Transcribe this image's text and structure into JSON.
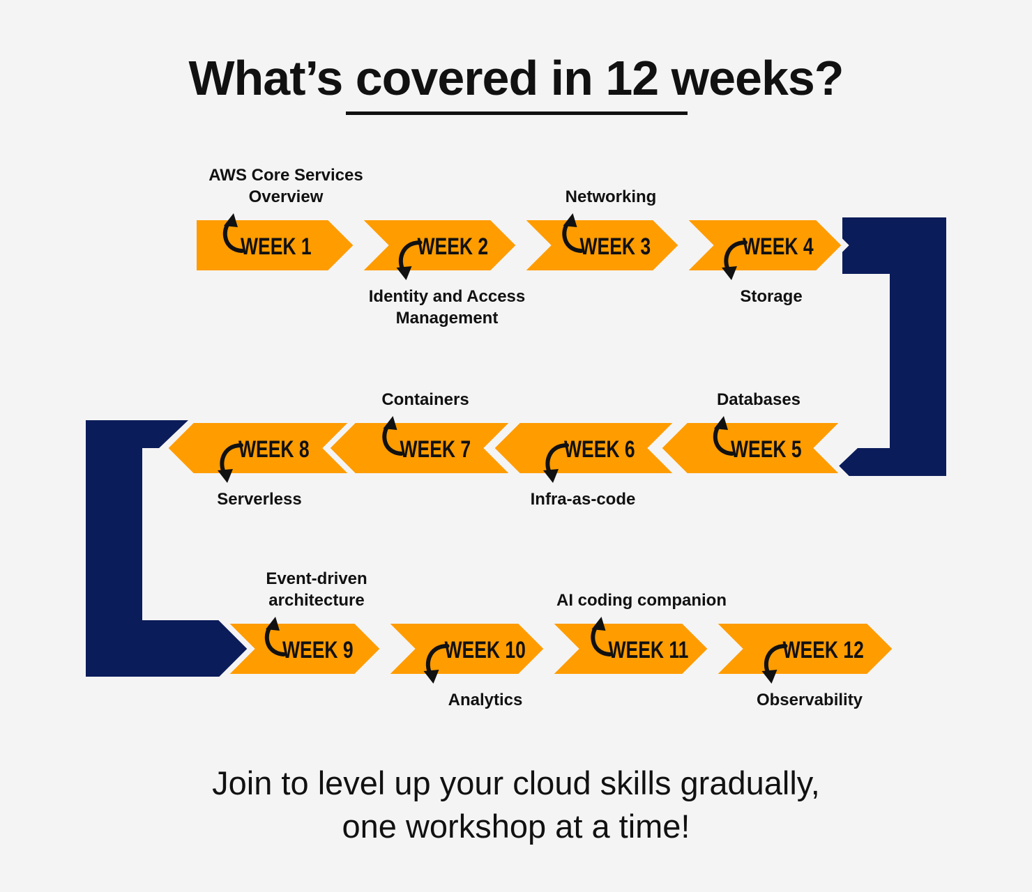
{
  "title": "What’s covered in 12 weeks?",
  "colors": {
    "chevron": "#ff9c00",
    "connector": "#0b1c5a",
    "background": "#f4f4f4",
    "text": "#111111"
  },
  "weeks": [
    {
      "label": "WEEK 1",
      "topic": "AWS Core Services Overview",
      "topic_position": "above"
    },
    {
      "label": "WEEK 2",
      "topic": "Identity and Access Management",
      "topic_position": "below"
    },
    {
      "label": "WEEK 3",
      "topic": "Networking",
      "topic_position": "above"
    },
    {
      "label": "WEEK 4",
      "topic": "Storage",
      "topic_position": "below"
    },
    {
      "label": "WEEK 5",
      "topic": "Databases",
      "topic_position": "above"
    },
    {
      "label": "WEEK 6",
      "topic": "Infra-as-code",
      "topic_position": "below"
    },
    {
      "label": "WEEK 7",
      "topic": "Containers",
      "topic_position": "above"
    },
    {
      "label": "WEEK 8",
      "topic": "Serverless",
      "topic_position": "below"
    },
    {
      "label": "WEEK 9",
      "topic": "Event-driven architecture",
      "topic_position": "above"
    },
    {
      "label": "WEEK 10",
      "topic": "Analytics",
      "topic_position": "below"
    },
    {
      "label": "WEEK 11",
      "topic": "AI coding companion",
      "topic_position": "above"
    },
    {
      "label": "WEEK 12",
      "topic": "Observability",
      "topic_position": "below"
    }
  ],
  "footer": {
    "line1": "Join to level up your cloud skills gradually,",
    "line2": "one workshop at a time!"
  }
}
